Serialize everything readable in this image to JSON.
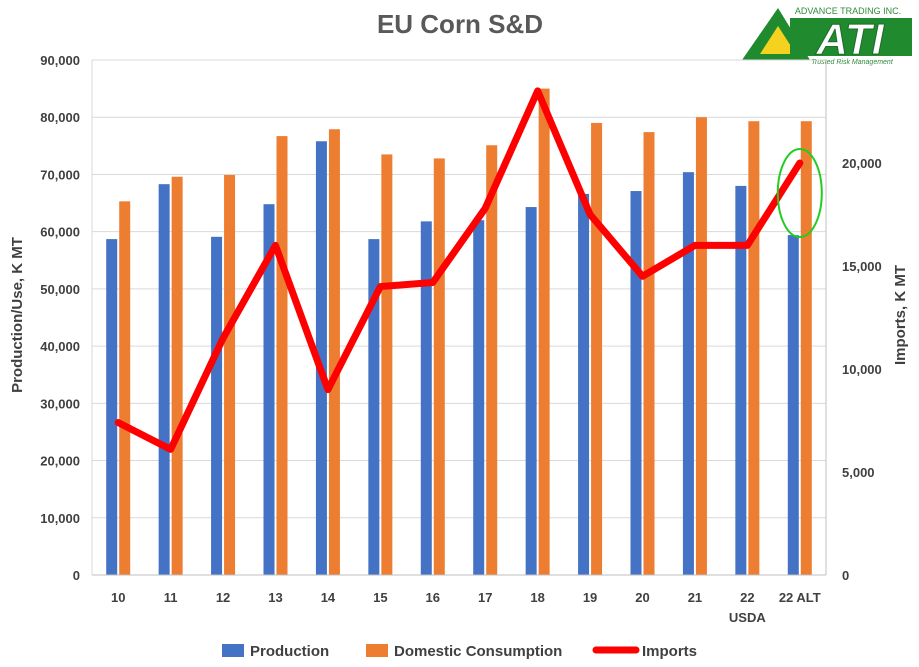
{
  "chart_data": {
    "type": "bar+line",
    "title": "EU Corn S&D",
    "categories": [
      "10",
      "11",
      "12",
      "13",
      "14",
      "15",
      "16",
      "17",
      "18",
      "19",
      "20",
      "21",
      "22",
      "22 ALT"
    ],
    "category_sublabel": {
      "index": 12,
      "text": "USDA"
    },
    "ylabel": "Production/Use, K MT",
    "y2label": "Imports, K MT",
    "ylim": [
      0,
      90000
    ],
    "y2lim": [
      0,
      25000
    ],
    "yticks": [
      "0",
      "10,000",
      "20,000",
      "30,000",
      "40,000",
      "50,000",
      "60,000",
      "70,000",
      "80,000",
      "90,000"
    ],
    "y2ticks": [
      "0",
      "5,000",
      "10,000",
      "15,000",
      "20,000"
    ],
    "y2tick_values": [
      0,
      5000,
      10000,
      15000,
      20000
    ],
    "series": [
      {
        "name": "Production",
        "kind": "bar",
        "color": "#4472c4",
        "values": [
          58700,
          68300,
          59100,
          64800,
          75800,
          58700,
          61800,
          62000,
          64300,
          66600,
          67100,
          70400,
          68000,
          59400
        ]
      },
      {
        "name": "Domestic Consumption",
        "kind": "bar",
        "color": "#ed7d31",
        "values": [
          65300,
          69600,
          69900,
          76700,
          77900,
          73500,
          72800,
          75100,
          85000,
          79000,
          77400,
          80000,
          79300,
          79300
        ]
      },
      {
        "name": "Imports",
        "kind": "line",
        "axis": "right",
        "color": "#ff0000",
        "values": [
          7400,
          6100,
          11500,
          16000,
          9000,
          14000,
          14200,
          17800,
          23500,
          17500,
          14500,
          16000,
          16000,
          20000
        ]
      }
    ],
    "annotation": {
      "type": "circle",
      "color": "#22cc22",
      "target": "22 ALT"
    },
    "grid": true,
    "legend_position": "bottom"
  },
  "logo": {
    "company": "ADVANCE TRADING INC.",
    "mark": "ATI",
    "tagline": "Trusted Risk Management",
    "color": "#1f8a2e"
  }
}
